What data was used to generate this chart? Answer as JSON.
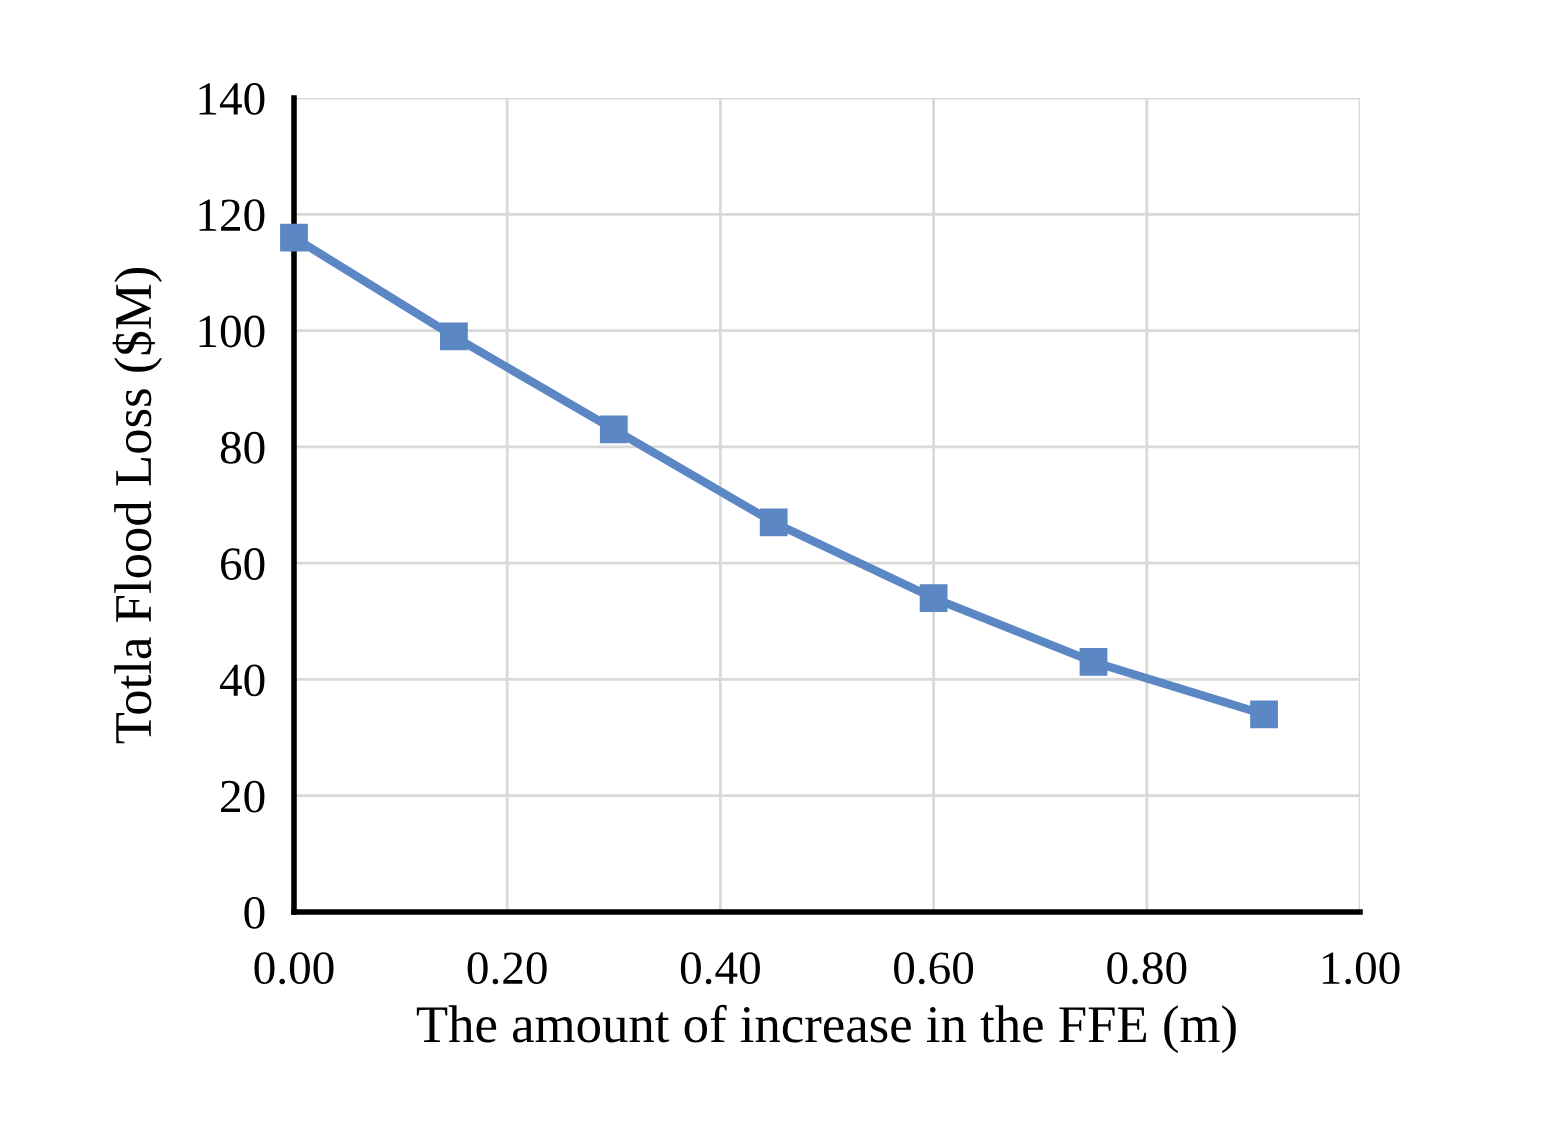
{
  "chart_data": {
    "type": "line",
    "xlabel": "The amount of increase in the FFE (m)",
    "ylabel": "Totla Flood Loss ($M)",
    "x": [
      0.0,
      0.15,
      0.3,
      0.45,
      0.6,
      0.75,
      0.91
    ],
    "series": [
      {
        "color": "#5b87c5",
        "values": [
          116,
          99,
          83,
          67,
          54,
          43,
          34
        ]
      }
    ],
    "xlim": [
      0,
      1
    ],
    "xticks": [
      {
        "value": 0,
        "label": "0.00"
      },
      {
        "value": 0.2,
        "label": "0.20"
      },
      {
        "value": 0.4,
        "label": "0.40"
      },
      {
        "value": 0.6,
        "label": "0.60"
      },
      {
        "value": 0.8,
        "label": "0.80"
      },
      {
        "value": 1,
        "label": "1.00"
      }
    ],
    "ylim": [
      0,
      140
    ],
    "yticks": [
      0,
      20,
      40,
      60,
      80,
      100,
      120,
      140
    ],
    "grid": true,
    "marker": "square",
    "line_style": "solid",
    "legend": false
  }
}
